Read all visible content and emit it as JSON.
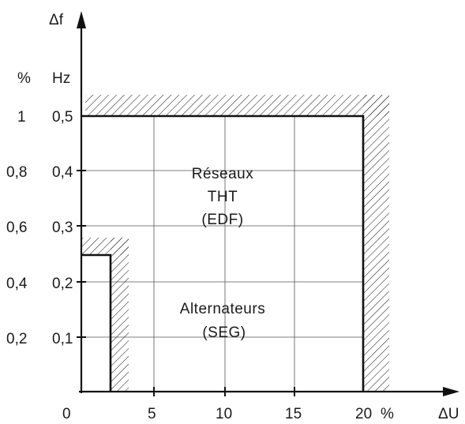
{
  "diagram": {
    "y_axis_symbol": "Δf",
    "x_axis_symbol": "ΔU",
    "y_unit_percent": "%",
    "y_unit_hz": "Hz",
    "x_unit_percent": "%",
    "y_ticks_percent": [
      "1",
      "0,8",
      "0,6",
      "0,4",
      "0,2"
    ],
    "y_ticks_hz": [
      "0,5",
      "0,4",
      "0,3",
      "0,2",
      "0,1"
    ],
    "x_ticks": [
      "0",
      "5",
      "10",
      "15",
      "20"
    ],
    "regions": {
      "reseaux": {
        "line1": "Réseaux",
        "line2": "THT",
        "line3": "(EDF)",
        "delta_u_max_percent": 20,
        "delta_f_max_hz": 0.5
      },
      "alternateurs": {
        "line1": "Alternateurs",
        "line2": "(SEG)",
        "delta_u_max_percent": 2,
        "delta_f_max_hz": 0.25
      }
    }
  }
}
